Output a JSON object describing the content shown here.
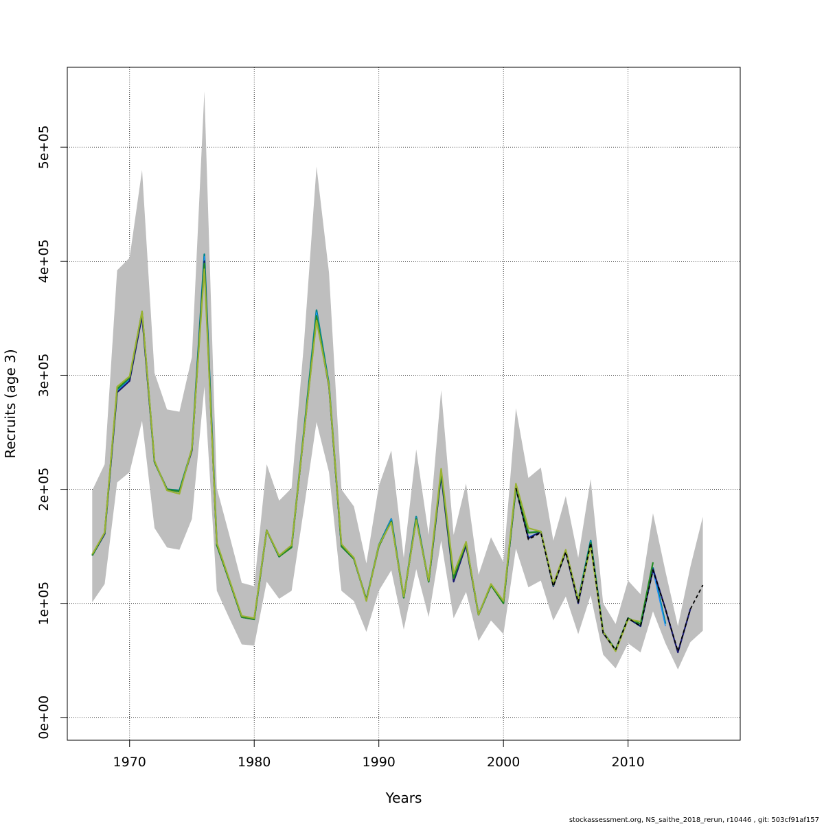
{
  "chart_data": {
    "type": "line",
    "xlabel": "Years",
    "ylabel": "Recruits (age 3)",
    "xlim": [
      1965,
      2019
    ],
    "ylim": [
      -20000,
      570000
    ],
    "xticks": [
      1970,
      1980,
      1990,
      2000,
      2010
    ],
    "yticks": [
      0,
      100000,
      200000,
      300000,
      400000,
      500000
    ],
    "ytick_labels": [
      "0e+00",
      "1e+05",
      "2e+05",
      "3e+05",
      "4e+05",
      "5e+05"
    ],
    "grid": true,
    "footer": "stockassessment.org, NS_saithe_2018_rerun, r10446 , git: 503cf91af157",
    "band": {
      "fill": "#bebebe",
      "x": [
        1967,
        1968,
        1969,
        1970,
        1971,
        1972,
        1973,
        1974,
        1975,
        1976,
        1977,
        1978,
        1979,
        1980,
        1981,
        1982,
        1983,
        1984,
        1985,
        1986,
        1987,
        1988,
        1989,
        1990,
        1991,
        1992,
        1993,
        1994,
        1995,
        1996,
        1997,
        1998,
        1999,
        2000,
        2001,
        2002,
        2003,
        2004,
        2005,
        2006,
        2007,
        2008,
        2009,
        2010,
        2011,
        2012,
        2013,
        2014,
        2015,
        2016
      ],
      "upper": [
        199000,
        222000,
        392000,
        403000,
        480000,
        302000,
        270000,
        268000,
        316000,
        549000,
        201000,
        160000,
        118000,
        115000,
        222000,
        190000,
        201000,
        329000,
        483000,
        390000,
        200000,
        185000,
        135000,
        203000,
        234000,
        140000,
        235000,
        160000,
        287000,
        160000,
        205000,
        125000,
        158000,
        136000,
        271000,
        210000,
        219000,
        155000,
        194000,
        140000,
        209000,
        100000,
        82000,
        120000,
        108000,
        179000,
        128000,
        80000,
        132000,
        176000
      ],
      "lower": [
        101000,
        117000,
        206000,
        215000,
        260000,
        166000,
        149000,
        147000,
        174000,
        290000,
        111000,
        87000,
        64000,
        63000,
        119000,
        104000,
        111000,
        184000,
        259000,
        215000,
        111000,
        102000,
        75000,
        111000,
        129000,
        77000,
        130000,
        88000,
        155000,
        87000,
        110000,
        67000,
        85000,
        73000,
        148000,
        114000,
        120000,
        85000,
        106000,
        73000,
        107000,
        55000,
        43000,
        65000,
        57000,
        93000,
        65000,
        42000,
        66000,
        76000
      ]
    },
    "series": [
      {
        "color": "#00868b",
        "width": 2.5,
        "x": [
          1967,
          1968,
          1969,
          1970,
          1971,
          1972,
          1973,
          1974,
          1975,
          1976,
          1977,
          1978,
          1979,
          1980,
          1981,
          1982,
          1983,
          1984,
          1985,
          1986,
          1987,
          1988,
          1989,
          1990,
          1991,
          1992,
          1993,
          1994,
          1995,
          1996,
          1997,
          1998,
          1999,
          2000,
          2001,
          2002,
          2003,
          2004,
          2005,
          2006,
          2007,
          2008,
          2009,
          2010,
          2011,
          2012,
          2013
        ],
        "values": [
          142000,
          161000,
          287000,
          297000,
          354000,
          224000,
          200000,
          199000,
          235000,
          406000,
          152000,
          120000,
          88000,
          86000,
          164000,
          141000,
          150000,
          252000,
          357000,
          292000,
          150000,
          139000,
          103000,
          151000,
          174000,
          105000,
          176000,
          119000,
          214000,
          124000,
          153000,
          90000,
          116000,
          101000,
          203000,
          162000,
          163000,
          116000,
          146000,
          103000,
          155000,
          75000,
          59000,
          87000,
          80000,
          131000,
          82000
        ]
      },
      {
        "color": "#1e90ff",
        "width": 1.5,
        "x": [
          1967,
          1968,
          1969,
          1970,
          1971,
          1972,
          1973,
          1974,
          1975,
          1976,
          1977,
          1978,
          1979,
          1980,
          1981,
          1982,
          1983,
          1984,
          1985,
          1986,
          1987,
          1988,
          1989,
          1990,
          1991,
          1992,
          1993,
          1994,
          1995,
          1996,
          1997,
          1998,
          1999,
          2000,
          2001,
          2002,
          2003,
          2004,
          2005,
          2006,
          2007,
          2008,
          2009,
          2010,
          2011,
          2012,
          2013
        ],
        "values": [
          142000,
          161000,
          286000,
          296000,
          353000,
          224000,
          200000,
          198000,
          234000,
          404000,
          151000,
          120000,
          88000,
          86000,
          164000,
          141000,
          150000,
          251000,
          355000,
          291000,
          150000,
          139000,
          103000,
          150000,
          174000,
          105000,
          175000,
          119000,
          213000,
          121000,
          152000,
          90000,
          116000,
          101000,
          201000,
          158000,
          163000,
          116000,
          145000,
          102000,
          154000,
          74000,
          59000,
          87000,
          80000,
          129000,
          80000
        ]
      },
      {
        "color": "#191970",
        "width": 2.2,
        "x": [
          1967,
          1968,
          1969,
          1970,
          1971,
          1972,
          1973,
          1974,
          1975,
          1976,
          1977,
          1978,
          1979,
          1980,
          1981,
          1982,
          1983,
          1984,
          1985,
          1986,
          1987,
          1988,
          1989,
          1990,
          1991,
          1992,
          1993,
          1994,
          1995,
          1996,
          1997,
          1998,
          1999,
          2000,
          2001,
          2002,
          2003,
          2004,
          2005,
          2006,
          2007,
          2008,
          2009,
          2010,
          2011,
          2012,
          2013,
          2014,
          2015
        ],
        "values": [
          142000,
          161000,
          285000,
          295000,
          352000,
          224000,
          200000,
          198000,
          234000,
          400000,
          151000,
          120000,
          88000,
          86000,
          164000,
          141000,
          150000,
          250000,
          350000,
          290000,
          150000,
          139000,
          103000,
          150000,
          172000,
          105000,
          174000,
          119000,
          212000,
          119000,
          151000,
          90000,
          116000,
          100000,
          201000,
          157000,
          163000,
          115000,
          145000,
          100000,
          153000,
          74000,
          59000,
          87000,
          80000,
          130000,
          95000,
          57000,
          95000
        ]
      },
      {
        "color": "#228b22",
        "width": 2.2,
        "x": [
          1967,
          1968,
          1969,
          1970,
          1971,
          1972,
          1973,
          1974,
          1975,
          1976,
          1977,
          1978,
          1979,
          1980,
          1981,
          1982,
          1983,
          1984,
          1985,
          1986,
          1987,
          1988,
          1989,
          1990,
          1991,
          1992,
          1993,
          1994,
          1995,
          1996,
          1997,
          1998,
          1999,
          2000,
          2001,
          2002,
          2003,
          2004,
          2005,
          2006,
          2007,
          2008,
          2009,
          2010,
          2011,
          2012
        ],
        "values": [
          142000,
          162000,
          288000,
          298000,
          356000,
          224000,
          200000,
          198000,
          235000,
          398000,
          151000,
          120000,
          88000,
          86000,
          164000,
          141000,
          149000,
          251000,
          352000,
          291000,
          150000,
          139000,
          103000,
          150000,
          172000,
          105000,
          174000,
          119000,
          215000,
          122000,
          153000,
          90000,
          116000,
          100000,
          202000,
          162000,
          163000,
          116000,
          146000,
          102000,
          153000,
          75000,
          59000,
          87000,
          82000,
          136000
        ]
      },
      {
        "color": "#9ab233",
        "width": 2.2,
        "x": [
          1967,
          1968,
          1969,
          1970,
          1971,
          1972,
          1973,
          1974,
          1975,
          1976,
          1977,
          1978,
          1979,
          1980,
          1981,
          1982,
          1983,
          1984,
          1985,
          1986,
          1987,
          1988,
          1989,
          1990,
          1991,
          1992,
          1993,
          1994,
          1995,
          1996,
          1997,
          1998,
          1999,
          2000,
          2001,
          2002,
          2003,
          2004,
          2005,
          2006,
          2007,
          2008,
          2009,
          2010,
          2011
        ],
        "values": [
          143000,
          162000,
          290000,
          299000,
          356000,
          225000,
          199000,
          196000,
          236000,
          393000,
          153000,
          121000,
          89000,
          87000,
          164000,
          142000,
          151000,
          250000,
          348000,
          291000,
          152000,
          140000,
          102000,
          151000,
          171000,
          106000,
          173000,
          120000,
          218000,
          126000,
          154000,
          90000,
          117000,
          102000,
          205000,
          166000,
          163000,
          117000,
          147000,
          103000,
          150000,
          75000,
          58000,
          86000,
          84000
        ]
      },
      {
        "color": "#000000",
        "width": 1.8,
        "dash": "5,4",
        "x": [
          2001,
          2002,
          2003,
          2004,
          2005,
          2006,
          2007,
          2008,
          2009,
          2010,
          2011,
          2012,
          2013,
          2014,
          2015,
          2016
        ],
        "values": [
          201000,
          156000,
          162000,
          115000,
          145000,
          101000,
          153000,
          74000,
          59000,
          87000,
          80000,
          129000,
          95000,
          58000,
          95000,
          116000
        ]
      }
    ]
  }
}
